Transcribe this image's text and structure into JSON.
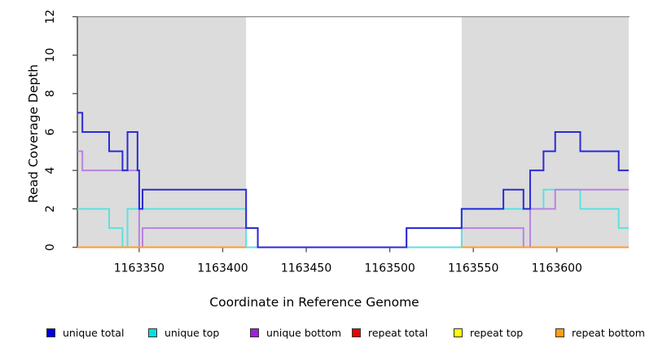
{
  "figure": {
    "x_axis_title": "Coordinate in Reference Genome",
    "y_axis_title": "Read Coverage Depth"
  },
  "chart_data": {
    "type": "line",
    "subtype": "step-coverage-plot",
    "title": "",
    "xlabel": "Coordinate in Reference Genome",
    "ylabel": "Read Coverage Depth",
    "xlim": [
      1163313,
      1163643
    ],
    "ylim": [
      0,
      12
    ],
    "x_ticks": [
      1163350,
      1163400,
      1163450,
      1163500,
      1163550,
      1163600
    ],
    "y_ticks": [
      0,
      2,
      4,
      6,
      8,
      10,
      12
    ],
    "grid": false,
    "legend_position": "bottom",
    "frame": {
      "top_border_color": "#8a8a8a",
      "axis_color": "#333333",
      "tick_color": "#4d4d4d"
    },
    "repeat_regions": {
      "fill": "#dcdcdc",
      "intervals": [
        [
          1163313,
          1163414
        ],
        [
          1163543,
          1163643
        ]
      ]
    },
    "series": [
      {
        "name": "repeat total",
        "line_color": "#e02020",
        "legend_color": "#ee0000",
        "segments": [
          [
            1163313,
            1163414,
            0
          ],
          [
            1163543,
            1163643,
            0
          ]
        ]
      },
      {
        "name": "repeat top",
        "line_color": "#f0f000",
        "legend_color": "#ffff00",
        "segments": [
          [
            1163313,
            1163414,
            0
          ],
          [
            1163543,
            1163643,
            0
          ]
        ]
      },
      {
        "name": "unique top",
        "line_color": "#5fdfdf",
        "legend_color": "#00e0e0",
        "segments": [
          [
            1163313,
            1163332,
            2
          ],
          [
            1163332,
            1163340,
            1
          ],
          [
            1163340,
            1163343,
            0
          ],
          [
            1163343,
            1163414,
            2
          ],
          [
            1163414,
            1163543,
            0
          ],
          [
            1163543,
            1163592,
            2
          ],
          [
            1163592,
            1163614,
            3
          ],
          [
            1163614,
            1163637,
            2
          ],
          [
            1163637,
            1163643,
            1
          ]
        ]
      },
      {
        "name": "unique bottom",
        "line_color": "#b982e2",
        "legend_color": "#a020e0",
        "segments": [
          [
            1163313,
            1163316,
            5
          ],
          [
            1163316,
            1163350,
            4
          ],
          [
            1163350,
            1163352,
            0
          ],
          [
            1163352,
            1163421,
            1
          ],
          [
            1163421,
            1163510,
            0
          ],
          [
            1163510,
            1163580,
            1
          ],
          [
            1163580,
            1163584,
            0
          ],
          [
            1163584,
            1163599,
            2
          ],
          [
            1163599,
            1163643,
            3
          ]
        ]
      },
      {
        "name": "repeat bottom",
        "line_color": "#ff9b28",
        "legend_color": "#ffa010",
        "segments": [
          [
            1163313,
            1163414,
            0
          ],
          [
            1163543,
            1163643,
            0
          ]
        ]
      },
      {
        "name": "unique total",
        "line_color": "#2b2bd5",
        "legend_color": "#0000e0",
        "segments": [
          [
            1163313,
            1163316,
            7
          ],
          [
            1163316,
            1163332,
            6
          ],
          [
            1163332,
            1163340,
            5
          ],
          [
            1163340,
            1163343,
            4
          ],
          [
            1163343,
            1163349,
            6
          ],
          [
            1163349,
            1163350,
            4
          ],
          [
            1163350,
            1163352,
            2
          ],
          [
            1163352,
            1163414,
            3
          ],
          [
            1163414,
            1163421,
            1
          ],
          [
            1163421,
            1163510,
            0
          ],
          [
            1163510,
            1163543,
            1
          ],
          [
            1163543,
            1163568,
            2
          ],
          [
            1163568,
            1163580,
            3
          ],
          [
            1163580,
            1163584,
            2
          ],
          [
            1163584,
            1163592,
            4
          ],
          [
            1163592,
            1163599,
            5
          ],
          [
            1163599,
            1163614,
            6
          ],
          [
            1163614,
            1163637,
            5
          ],
          [
            1163637,
            1163643,
            4
          ]
        ]
      }
    ]
  },
  "legend": {
    "items": [
      {
        "label": "unique total",
        "color": "#0000e0"
      },
      {
        "label": "unique top",
        "color": "#00e0e0"
      },
      {
        "label": "unique bottom",
        "color": "#a020e0"
      },
      {
        "label": "repeat total",
        "color": "#ee0000"
      },
      {
        "label": "repeat top",
        "color": "#ffff00"
      },
      {
        "label": "repeat bottom",
        "color": "#ffa010"
      }
    ]
  }
}
